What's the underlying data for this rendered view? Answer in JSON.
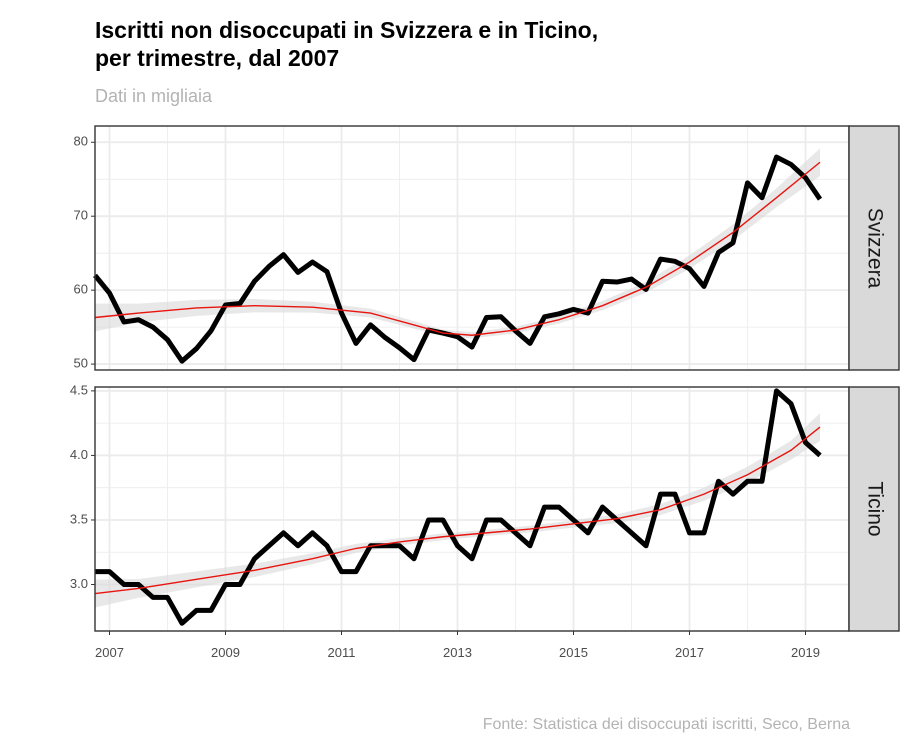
{
  "title_line1": "Iscritti non disoccupati in Svizzera e in Ticino,",
  "title_line2": "per trimestre, dal 2007",
  "subtitle": "Dati in migliaia",
  "caption": "Fonte: Statistica dei disoccupati iscritti, Seco, Berna",
  "colors": {
    "series": "#000000",
    "smooth": "#e8140f",
    "band": "#d9d9d9",
    "strip_bg": "#d9d9d9",
    "grid": "#ebebeb",
    "panel_border": "#333333"
  },
  "chart_data": {
    "type": "line",
    "x_ticks": [
      "2007",
      "2009",
      "2011",
      "2013",
      "2015",
      "2017",
      "2019"
    ],
    "xlim": [
      2006.75,
      2019.75
    ],
    "grid": true,
    "panels": [
      {
        "name": "Svizzera",
        "ylim": [
          49.2,
          82.2
        ],
        "y_ticks": [
          50,
          60,
          70,
          80
        ],
        "series": {
          "x": [
            2006.75,
            2007.0,
            2007.25,
            2007.5,
            2007.75,
            2008.0,
            2008.25,
            2008.5,
            2008.75,
            2009.0,
            2009.25,
            2009.5,
            2009.75,
            2010.0,
            2010.25,
            2010.5,
            2010.75,
            2011.0,
            2011.25,
            2011.5,
            2011.75,
            2012.0,
            2012.25,
            2012.5,
            2012.75,
            2013.0,
            2013.25,
            2013.5,
            2013.75,
            2014.0,
            2014.25,
            2014.5,
            2014.75,
            2015.0,
            2015.25,
            2015.5,
            2015.75,
            2016.0,
            2016.25,
            2016.5,
            2016.75,
            2017.0,
            2017.25,
            2017.5,
            2017.75,
            2018.0,
            2018.25,
            2018.5,
            2018.75,
            2019.0,
            2019.25
          ],
          "values": [
            62.0,
            59.6,
            55.7,
            56.0,
            55.0,
            53.3,
            50.4,
            52.1,
            54.5,
            58.0,
            58.2,
            61.2,
            63.2,
            64.8,
            62.4,
            63.8,
            62.5,
            56.9,
            52.8,
            55.3,
            53.6,
            52.2,
            50.6,
            54.6,
            54.2,
            53.7,
            52.3,
            56.3,
            56.4,
            54.5,
            52.8,
            56.4,
            56.8,
            57.4,
            56.9,
            61.2,
            61.1,
            61.5,
            60.1,
            64.2,
            63.9,
            62.9,
            60.5,
            65.1,
            66.4,
            74.5,
            72.5,
            78.0,
            77.0,
            75.2,
            72.3
          ]
        },
        "smooth": {
          "x": [
            2006.75,
            2007.5,
            2008.5,
            2009.5,
            2010.5,
            2011.5,
            2012.25,
            2012.75,
            2013.25,
            2014.0,
            2014.75,
            2015.5,
            2016.25,
            2017.0,
            2017.75,
            2018.5,
            2019.25
          ],
          "values": [
            56.3,
            56.9,
            57.6,
            57.9,
            57.7,
            56.9,
            55.3,
            54.2,
            53.9,
            54.6,
            56.0,
            57.9,
            60.4,
            63.8,
            67.8,
            72.5,
            77.3
          ]
        }
      },
      {
        "name": "Ticino",
        "ylim": [
          2.64,
          4.53
        ],
        "y_ticks": [
          3.0,
          3.5,
          4.0,
          4.5
        ],
        "y_tick_labels": [
          "3.0",
          "3.5",
          "4.0",
          "4.5"
        ],
        "series": {
          "x": [
            2006.75,
            2007.0,
            2007.25,
            2007.5,
            2007.75,
            2008.0,
            2008.25,
            2008.5,
            2008.75,
            2009.0,
            2009.25,
            2009.5,
            2009.75,
            2010.0,
            2010.25,
            2010.5,
            2010.75,
            2011.0,
            2011.25,
            2011.5,
            2011.75,
            2012.0,
            2012.25,
            2012.5,
            2012.75,
            2013.0,
            2013.25,
            2013.5,
            2013.75,
            2014.0,
            2014.25,
            2014.5,
            2014.75,
            2015.0,
            2015.25,
            2015.5,
            2015.75,
            2016.0,
            2016.25,
            2016.5,
            2016.75,
            2017.0,
            2017.25,
            2017.5,
            2017.75,
            2018.0,
            2018.25,
            2018.5,
            2018.75,
            2019.0,
            2019.25
          ],
          "values": [
            3.1,
            3.1,
            3.0,
            3.0,
            2.9,
            2.9,
            2.7,
            2.8,
            2.8,
            3.0,
            3.0,
            3.2,
            3.3,
            3.4,
            3.3,
            3.4,
            3.3,
            3.1,
            3.1,
            3.3,
            3.3,
            3.3,
            3.2,
            3.5,
            3.5,
            3.3,
            3.2,
            3.5,
            3.5,
            3.4,
            3.3,
            3.6,
            3.6,
            3.5,
            3.4,
            3.6,
            3.5,
            3.4,
            3.3,
            3.7,
            3.7,
            3.4,
            3.4,
            3.8,
            3.7,
            3.8,
            3.8,
            4.5,
            4.4,
            4.1,
            4.0
          ]
        },
        "smooth": {
          "x": [
            2006.75,
            2007.5,
            2008.5,
            2009.5,
            2010.5,
            2011.25,
            2012.0,
            2012.75,
            2013.5,
            2014.25,
            2015.0,
            2015.75,
            2016.5,
            2017.25,
            2018.0,
            2018.75,
            2019.25
          ],
          "values": [
            2.93,
            2.97,
            3.04,
            3.11,
            3.2,
            3.28,
            3.33,
            3.37,
            3.4,
            3.43,
            3.47,
            3.51,
            3.58,
            3.7,
            3.85,
            4.04,
            4.22
          ]
        }
      }
    ]
  }
}
